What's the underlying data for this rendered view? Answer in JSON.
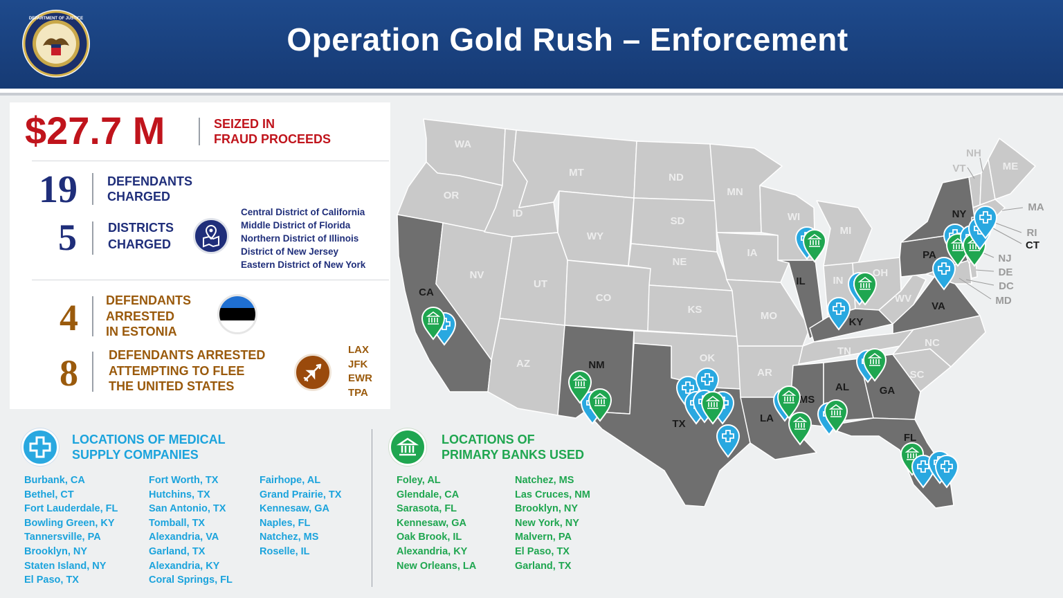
{
  "header": {
    "title": "Operation Gold Rush – Enforcement",
    "seal_label": "DEPARTMENT OF JUSTICE"
  },
  "seized": {
    "amount": "$27.7 M",
    "label_line1": "SEIZED IN",
    "label_line2": "FRAUD PROCEEDS"
  },
  "defendants_charged": {
    "count": "19",
    "line1": "DEFENDANTS",
    "line2": "CHARGED"
  },
  "districts_charged": {
    "count": "5",
    "line1": "DISTRICTS",
    "line2": "CHARGED",
    "list": [
      "Central District of California",
      "Middle District of Florida",
      "Northern District of Illinois",
      "District of New Jersey",
      "Eastern District of New York"
    ]
  },
  "estonia": {
    "count": "4",
    "line1": "DEFENDANTS",
    "line2": "ARRESTED",
    "line3": "IN ESTONIA"
  },
  "flee": {
    "count": "8",
    "line1": "DEFENDANTS ARRESTED",
    "line2": "ATTEMPTING TO FLEE",
    "line3": "THE UNITED STATES",
    "airports": [
      "LAX",
      "JFK",
      "EWR",
      "TPA"
    ]
  },
  "medical": {
    "heading_line1": "LOCATIONS OF MEDICAL",
    "heading_line2": "SUPPLY COMPANIES",
    "col1": [
      "Burbank, CA",
      "Bethel, CT",
      "Fort Lauderdale, FL",
      "Bowling Green, KY",
      "Tannersville, PA",
      "Brooklyn, NY",
      "Staten Island, NY",
      "El Paso, TX"
    ],
    "col2": [
      "Fort Worth, TX",
      "Hutchins, TX",
      "San Antonio, TX",
      "Tomball, TX",
      "Alexandria, VA",
      "Garland, TX",
      "Alexandria, KY",
      "Coral Springs, FL"
    ],
    "col3": [
      "Fairhope, AL",
      "Grand Prairie, TX",
      "Kennesaw, GA",
      "Naples, FL",
      "Natchez, MS",
      "Roselle, IL"
    ]
  },
  "banks": {
    "heading_line1": "LOCATIONS OF",
    "heading_line2": "PRIMARY BANKS USED",
    "col1": [
      "Foley, AL",
      "Glendale, CA",
      "Sarasota, FL",
      "Kennesaw, GA",
      "Oak Brook, IL",
      "Alexandria, KY",
      "New Orleans, LA"
    ],
    "col2": [
      "Natchez, MS",
      "Las Cruces, NM",
      "Brooklyn, NY",
      "New York, NY",
      "Malvern, PA",
      "El Paso, TX",
      "Garland, TX"
    ]
  },
  "map_labels": {
    "wa": "WA",
    "or": "OR",
    "ca": "CA",
    "nv": "NV",
    "id": "ID",
    "mt": "MT",
    "wy": "WY",
    "ut": "UT",
    "az": "AZ",
    "co": "CO",
    "nm": "NM",
    "nd": "ND",
    "sd": "SD",
    "ne": "NE",
    "ks": "KS",
    "ok": "OK",
    "tx": "TX",
    "mn": "MN",
    "ia": "IA",
    "mo": "MO",
    "ar": "AR",
    "la": "LA",
    "wi": "WI",
    "il": "IL",
    "mi": "MI",
    "in": "IN",
    "oh": "OH",
    "ky": "KY",
    "tn": "TN",
    "ms": "MS",
    "al": "AL",
    "ga": "GA",
    "fl": "FL",
    "sc": "SC",
    "nc": "NC",
    "va": "VA",
    "wv": "WV",
    "pa": "PA",
    "ny": "NY",
    "vt": "VT",
    "nh": "NH",
    "me": "ME",
    "ma": "MA",
    "ri": "RI",
    "ct": "CT",
    "nj": "NJ",
    "de": "DE",
    "dc": "DC",
    "md": "MD"
  },
  "colors": {
    "highlight_state": "#6f6f6f",
    "other_state": "#c9c9c9",
    "medical_pin": "#29a8e0",
    "bank_pin": "#1fa650",
    "navy": "#1f2e7a",
    "red": "#c0141c",
    "brown": "#9a5a0c"
  }
}
